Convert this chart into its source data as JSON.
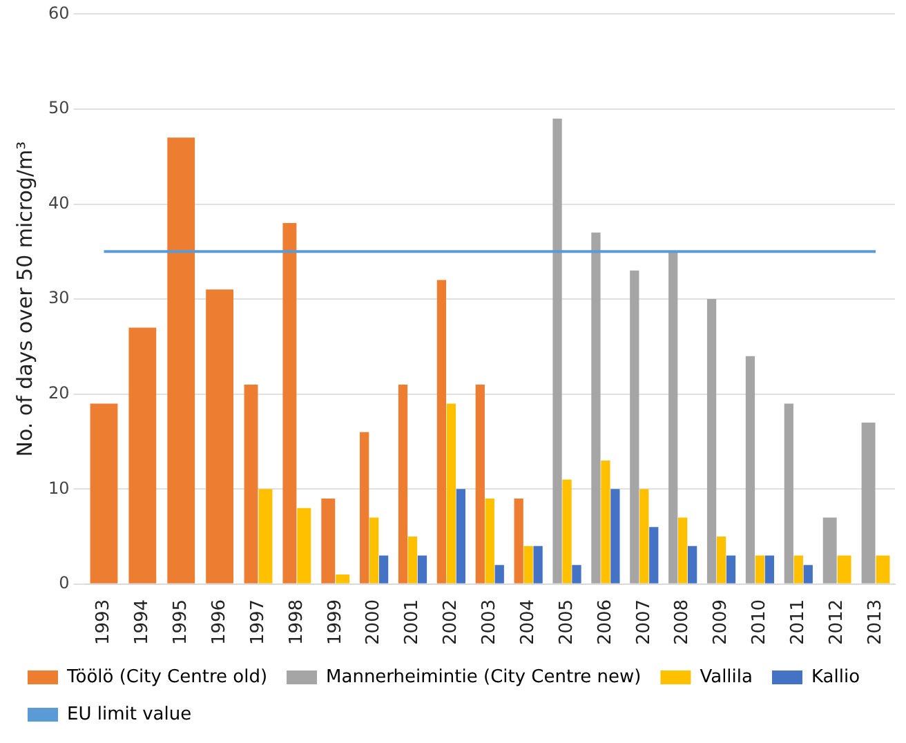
{
  "chart_data": {
    "type": "bar",
    "ylabel": "No. of days over 50 microg/m³",
    "categories": [
      "1993",
      "1994",
      "1995",
      "1996",
      "1997",
      "1998",
      "1999",
      "2000",
      "2001",
      "2002",
      "2003",
      "2004",
      "2005",
      "2006",
      "2007",
      "2008",
      "2009",
      "2010",
      "2011",
      "2012",
      "2013"
    ],
    "series": [
      {
        "name": "Töölö (City Centre old)",
        "color": "#ed7d31",
        "values": [
          19,
          27,
          47,
          31,
          21,
          38,
          9,
          16,
          21,
          32,
          21,
          9,
          null,
          null,
          null,
          null,
          null,
          null,
          null,
          null,
          null
        ]
      },
      {
        "name": "Mannerheimintie (City Centre new)",
        "color": "#a5a5a5",
        "values": [
          null,
          null,
          null,
          null,
          null,
          null,
          null,
          null,
          null,
          null,
          null,
          null,
          49,
          37,
          33,
          35,
          30,
          24,
          19,
          7,
          17
        ]
      },
      {
        "name": "Vallila",
        "color": "#ffc000",
        "values": [
          null,
          null,
          null,
          null,
          10,
          8,
          1,
          7,
          5,
          19,
          9,
          4,
          11,
          13,
          10,
          7,
          5,
          3,
          3,
          3,
          3
        ]
      },
      {
        "name": "Kallio",
        "color": "#4472c4",
        "values": [
          null,
          null,
          null,
          null,
          null,
          null,
          null,
          3,
          3,
          10,
          2,
          4,
          2,
          10,
          6,
          4,
          3,
          3,
          2,
          null,
          null
        ]
      },
      {
        "name": "EU limit value",
        "type": "line",
        "color": "#5b9bd5",
        "values": [
          35,
          35,
          35,
          35,
          35,
          35,
          35,
          35,
          35,
          35,
          35,
          35,
          35,
          35,
          35,
          35,
          35,
          35,
          35,
          35,
          35
        ]
      }
    ],
    "ylim": [
      0,
      60
    ],
    "yticks": [
      0,
      10,
      20,
      30,
      40,
      50,
      60
    ],
    "grid": "y",
    "legend": "bottom",
    "marker": "none"
  }
}
